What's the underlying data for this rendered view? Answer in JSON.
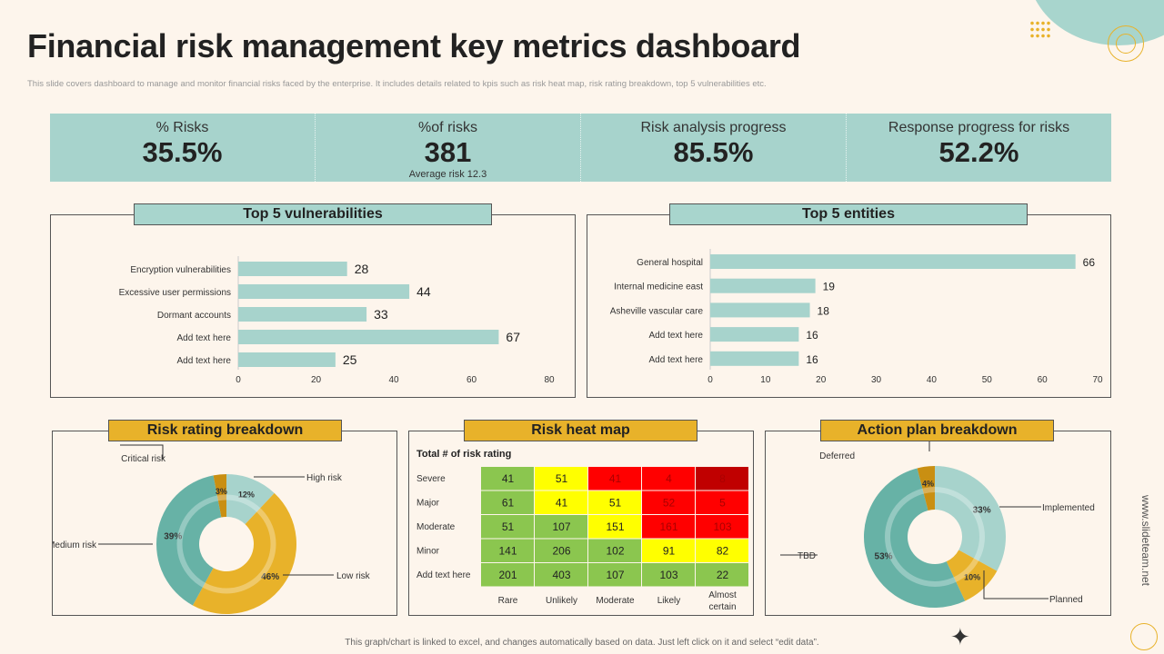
{
  "title": "Financial risk management key metrics dashboard",
  "subtitle": "This slide covers dashboard to manage and monitor  financial risks faced by the enterprise. It includes details related to kpis such as risk heat map,  risk rating breakdown, top 5 vulnerabilities etc.",
  "kpis": [
    {
      "label": "% Risks",
      "value": "35.5%"
    },
    {
      "label": "%of risks",
      "value": "381",
      "note": "Average risk 12.3"
    },
    {
      "label": "Risk analysis progress",
      "value": "85.5%"
    },
    {
      "label": "Response progress for risks",
      "value": "52.2%"
    }
  ],
  "colors": {
    "background": "#fdf5ec",
    "teal": "#a7d3cc",
    "bar": "#a7d3cc",
    "gold": "#e8b22a",
    "dark_gold": "#c98f12",
    "mid_teal": "#67b2a6"
  },
  "vulnerabilities": {
    "title": "Top 5 vulnerabilities",
    "categories": [
      "Encryption vulnerabilities",
      "Excessive user permissions",
      "Dormant accounts",
      "Add text here",
      "Add text here"
    ],
    "values": [
      28,
      44,
      33,
      67,
      25
    ],
    "ticks": [
      "0",
      "20",
      "40",
      "60",
      "80"
    ],
    "xlim": [
      0,
      80
    ]
  },
  "entities": {
    "title": "Top 5 entities",
    "categories": [
      "General hospital",
      "Internal medicine east",
      "Asheville vascular care",
      "Add text here",
      "Add text here"
    ],
    "values": [
      66,
      19,
      18,
      16,
      16
    ],
    "ticks": [
      "0",
      "10",
      "20",
      "30",
      "40",
      "50",
      "60",
      "70"
    ],
    "xlim": [
      0,
      70
    ]
  },
  "risk_rating": {
    "title": "Risk rating breakdown",
    "slices": [
      {
        "name": "High risk",
        "value": 12,
        "label": "12%",
        "color": "#a7d3cc"
      },
      {
        "name": "Low risk",
        "value": 46,
        "label": "46%",
        "color": "#e8b22a"
      },
      {
        "name": "Medium risk",
        "value": 39,
        "label": "39%",
        "color": "#67b2a6"
      },
      {
        "name": "Critical risk",
        "value": 3,
        "label": "3%",
        "color": "#c98f12"
      }
    ]
  },
  "heatmap": {
    "title": "Risk heat map",
    "caption": "Total # of risk rating",
    "rows": [
      "Severe",
      "Major",
      "Moderate",
      "Minor",
      "Add text here"
    ],
    "cols": [
      "Rare",
      "Unlikely",
      "Moderate",
      "Likely",
      "Almost certain"
    ],
    "values": [
      [
        41,
        51,
        41,
        4,
        8
      ],
      [
        61,
        41,
        51,
        52,
        5
      ],
      [
        51,
        107,
        151,
        161,
        103
      ],
      [
        141,
        206,
        102,
        91,
        82
      ],
      [
        201,
        403,
        107,
        103,
        22
      ]
    ],
    "levels": [
      [
        "g",
        "y",
        "r",
        "r",
        "d"
      ],
      [
        "g",
        "y",
        "y",
        "r",
        "r"
      ],
      [
        "g",
        "g",
        "y",
        "r",
        "r"
      ],
      [
        "g",
        "g",
        "g",
        "y",
        "y"
      ],
      [
        "g",
        "g",
        "g",
        "g",
        "g"
      ]
    ],
    "level_colors": {
      "g": "#8bc64f",
      "y": "#ffff00",
      "r": "#ff0000",
      "d": "#c00000"
    }
  },
  "action_plan": {
    "title": "Action plan breakdown",
    "slices": [
      {
        "name": "Implemented",
        "value": 33,
        "label": "33%",
        "color": "#a7d3cc"
      },
      {
        "name": "Planned",
        "value": 10,
        "label": "10%",
        "color": "#e8b22a"
      },
      {
        "name": "TBD",
        "value": 53,
        "label": "53%",
        "color": "#67b2a6"
      },
      {
        "name": "Deferred",
        "value": 4,
        "label": "4%",
        "color": "#c98f12"
      }
    ]
  },
  "watermark": "www.slideteam.net",
  "footer": "This graph/chart is linked to excel, and changes automatically based on data. Just left click on it and select “edit data”."
}
